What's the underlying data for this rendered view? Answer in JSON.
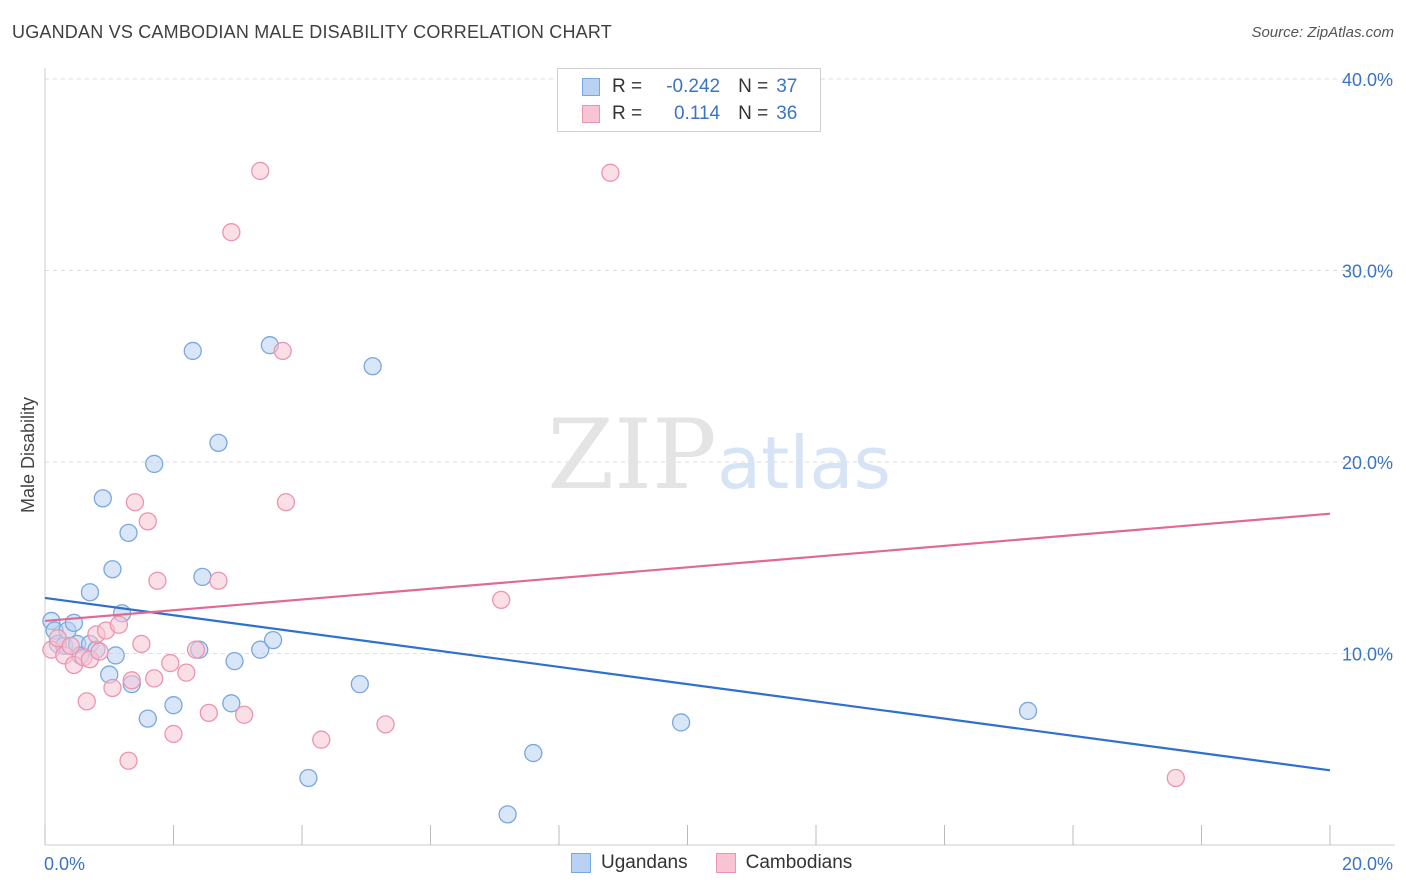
{
  "title": "UGANDAN VS CAMBODIAN MALE DISABILITY CORRELATION CHART",
  "source": "Source: ZipAtlas.com",
  "watermark": {
    "zip": "ZIP",
    "atlas": "atlas"
  },
  "legend": {
    "r_label": "R =",
    "n_label": "N =",
    "rows": [
      {
        "r": "-0.242",
        "n": "37"
      },
      {
        "r": "0.114",
        "n": "36"
      }
    ]
  },
  "bottom_legend": [
    "Ugandans",
    "Cambodians"
  ],
  "colors": {
    "blue_fill": "#b9d2f3",
    "blue_stroke": "#7aa7e0",
    "blue_line": "#2f6fd1",
    "pink_fill": "#f8c4d3",
    "pink_stroke": "#ec94ae",
    "pink_line": "#e06a93",
    "grid": "#dddddd",
    "tick_text": "#3a74c4"
  },
  "chart_data": {
    "type": "scatter",
    "title": "UGANDAN VS CAMBODIAN MALE DISABILITY CORRELATION CHART",
    "xlabel": "",
    "ylabel": "Male Disability",
    "xlim": [
      0,
      20
    ],
    "ylim": [
      0,
      40
    ],
    "x_tick_labels": [
      "0.0%",
      "20.0%"
    ],
    "y_ticks": [
      10,
      20,
      30,
      40
    ],
    "y_tick_labels": [
      "10.0%",
      "20.0%",
      "30.0%",
      "40.0%"
    ],
    "series": [
      {
        "name": "Ugandans",
        "r": -0.242,
        "n": 37,
        "trend": {
          "x": [
            0,
            20
          ],
          "y": [
            12.9,
            3.9
          ]
        },
        "points": [
          [
            0.1,
            11.7
          ],
          [
            0.15,
            11.2
          ],
          [
            0.2,
            10.5
          ],
          [
            0.3,
            10.4
          ],
          [
            0.35,
            11.2
          ],
          [
            0.45,
            11.6
          ],
          [
            0.5,
            10.5
          ],
          [
            0.55,
            9.9
          ],
          [
            0.7,
            13.2
          ],
          [
            0.7,
            10.5
          ],
          [
            0.8,
            10.2
          ],
          [
            0.9,
            18.1
          ],
          [
            1.0,
            8.9
          ],
          [
            1.05,
            14.4
          ],
          [
            1.1,
            9.9
          ],
          [
            1.2,
            12.1
          ],
          [
            1.3,
            16.3
          ],
          [
            1.35,
            8.4
          ],
          [
            1.6,
            6.6
          ],
          [
            1.7,
            19.9
          ],
          [
            2.0,
            7.3
          ],
          [
            2.3,
            25.8
          ],
          [
            2.4,
            10.2
          ],
          [
            2.45,
            14.0
          ],
          [
            2.7,
            21.0
          ],
          [
            2.9,
            7.4
          ],
          [
            2.95,
            9.6
          ],
          [
            3.35,
            10.2
          ],
          [
            3.5,
            26.1
          ],
          [
            3.55,
            10.7
          ],
          [
            4.1,
            3.5
          ],
          [
            4.9,
            8.4
          ],
          [
            5.1,
            25.0
          ],
          [
            7.2,
            1.6
          ],
          [
            7.6,
            4.8
          ],
          [
            9.9,
            6.4
          ],
          [
            15.3,
            7.0
          ]
        ]
      },
      {
        "name": "Cambodians",
        "r": 0.114,
        "n": 36,
        "trend": {
          "x": [
            0,
            20
          ],
          "y": [
            11.7,
            17.3
          ]
        },
        "points": [
          [
            0.1,
            10.2
          ],
          [
            0.2,
            10.8
          ],
          [
            0.3,
            9.9
          ],
          [
            0.4,
            10.4
          ],
          [
            0.45,
            9.4
          ],
          [
            0.6,
            9.8
          ],
          [
            0.65,
            7.5
          ],
          [
            0.7,
            9.7
          ],
          [
            0.8,
            11.0
          ],
          [
            0.85,
            10.1
          ],
          [
            0.95,
            11.2
          ],
          [
            1.05,
            8.2
          ],
          [
            1.15,
            11.5
          ],
          [
            1.3,
            4.4
          ],
          [
            1.35,
            8.6
          ],
          [
            1.4,
            17.9
          ],
          [
            1.5,
            10.5
          ],
          [
            1.6,
            16.9
          ],
          [
            1.7,
            8.7
          ],
          [
            1.75,
            13.8
          ],
          [
            1.95,
            9.5
          ],
          [
            2.0,
            5.8
          ],
          [
            2.2,
            9.0
          ],
          [
            2.35,
            10.2
          ],
          [
            2.55,
            6.9
          ],
          [
            2.7,
            13.8
          ],
          [
            2.9,
            32.0
          ],
          [
            3.1,
            6.8
          ],
          [
            3.35,
            35.2
          ],
          [
            3.7,
            25.8
          ],
          [
            3.75,
            17.9
          ],
          [
            4.3,
            5.5
          ],
          [
            5.3,
            6.3
          ],
          [
            7.1,
            12.8
          ],
          [
            8.8,
            35.1
          ],
          [
            17.6,
            3.5
          ]
        ]
      }
    ]
  }
}
